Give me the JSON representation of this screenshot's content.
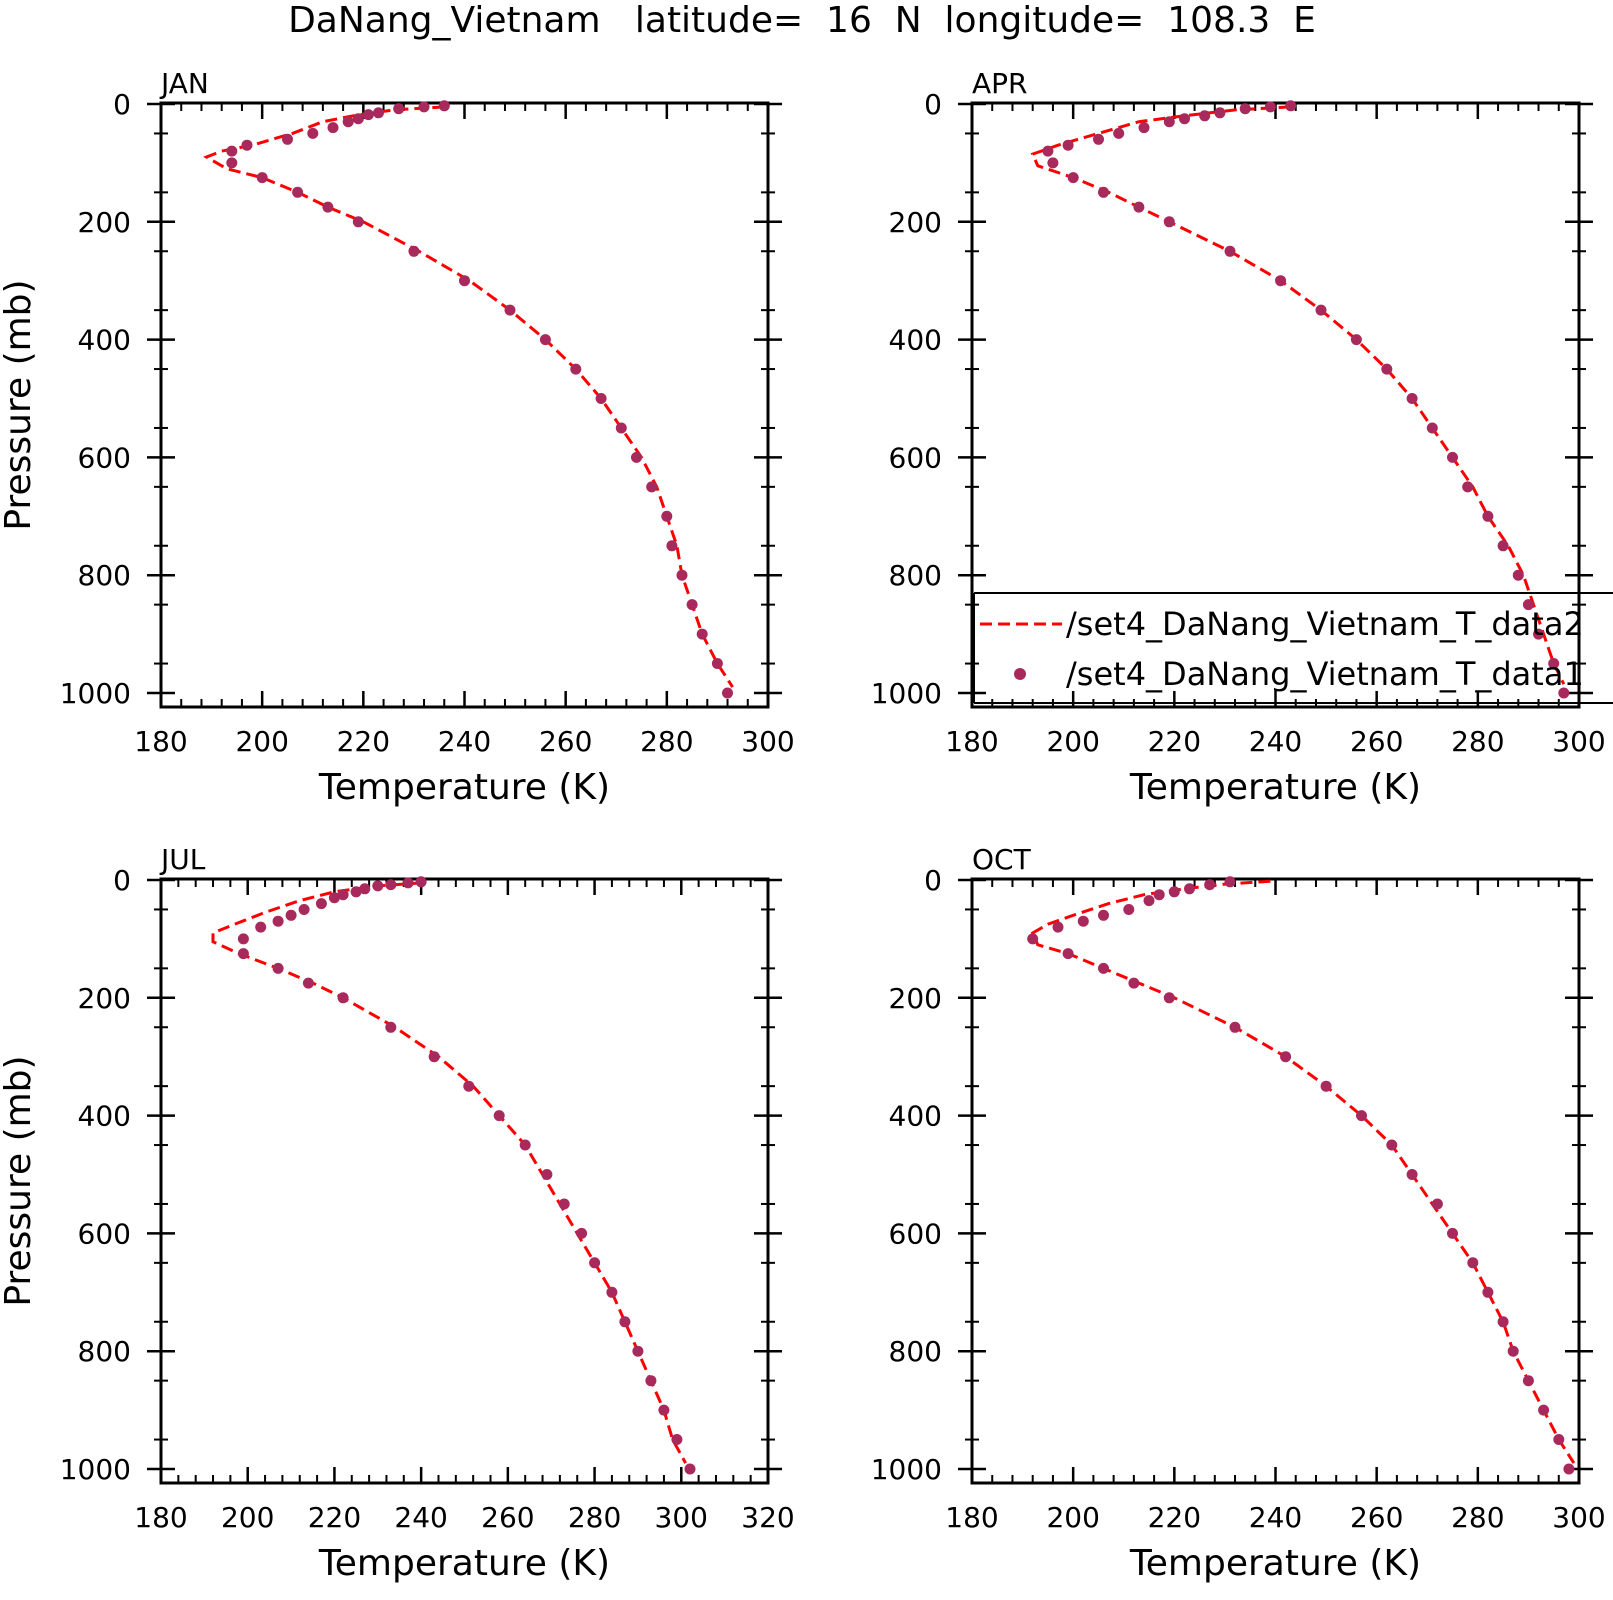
{
  "figure": {
    "title": "DaNang_Vietnam   latitude=  16  N  longitude=  108.3  E"
  },
  "colors": {
    "model_line": "#ff0000",
    "obs_marker": "#a8295c",
    "axes": "#000000"
  },
  "legend": {
    "panel": "APR",
    "placement": "lower-right, overflowing right edge",
    "items": [
      {
        "label": "/set4_DaNang_Vietnam_T_data2",
        "style": "dashed-line"
      },
      {
        "label": "/set4_DaNang_Vietnam_T_data1",
        "style": "dot"
      }
    ]
  },
  "chart_data": [
    {
      "type": "line",
      "panel_label": "JAN",
      "xlabel": "Temperature (K)",
      "ylabel": "Pressure (mb)",
      "xlim": [
        180,
        300
      ],
      "ylim": [
        1000,
        0
      ],
      "x_ticks": [
        "180",
        "200",
        "220",
        "240",
        "260",
        "280",
        "300"
      ],
      "y_ticks": [
        "0",
        "200",
        "400",
        "600",
        "800",
        "1000"
      ],
      "series": [
        {
          "style": "dashed-line",
          "points": [
            [
              236,
              5
            ],
            [
              226,
              10
            ],
            [
              218,
              20
            ],
            [
              212,
              30
            ],
            [
              206,
              50
            ],
            [
              198,
              70
            ],
            [
              192,
              80
            ],
            [
              189,
              90
            ],
            [
              193,
              110
            ],
            [
              200,
              125
            ],
            [
              207,
              150
            ],
            [
              213,
              175
            ],
            [
              220,
              200
            ],
            [
              231,
              250
            ],
            [
              241,
              300
            ],
            [
              249,
              350
            ],
            [
              256,
              400
            ],
            [
              262,
              450
            ],
            [
              267,
              500
            ],
            [
              271,
              550
            ],
            [
              275,
              600
            ],
            [
              278,
              650
            ],
            [
              280,
              700
            ],
            [
              282,
              750
            ],
            [
              283,
              800
            ],
            [
              285,
              850
            ],
            [
              287,
              900
            ],
            [
              290,
              950
            ],
            [
              293,
              990
            ]
          ]
        },
        {
          "style": "dot",
          "points": [
            [
              236,
              3
            ],
            [
              232,
              5
            ],
            [
              227,
              8
            ],
            [
              223,
              15
            ],
            [
              221,
              18
            ],
            [
              219,
              25
            ],
            [
              217,
              30
            ],
            [
              214,
              40
            ],
            [
              210,
              50
            ],
            [
              205,
              60
            ],
            [
              197,
              70
            ],
            [
              194,
              80
            ],
            [
              194,
              100
            ],
            [
              200,
              125
            ],
            [
              207,
              150
            ],
            [
              213,
              175
            ],
            [
              219,
              200
            ],
            [
              230,
              250
            ],
            [
              240,
              300
            ],
            [
              249,
              350
            ],
            [
              256,
              400
            ],
            [
              262,
              450
            ],
            [
              267,
              500
            ],
            [
              271,
              550
            ],
            [
              274,
              600
            ],
            [
              277,
              650
            ],
            [
              280,
              700
            ],
            [
              281,
              750
            ],
            [
              283,
              800
            ],
            [
              285,
              850
            ],
            [
              287,
              900
            ],
            [
              290,
              950
            ],
            [
              292,
              1000
            ]
          ]
        }
      ]
    },
    {
      "type": "line",
      "panel_label": "APR",
      "xlabel": "Temperature (K)",
      "ylabel": "",
      "xlim": [
        180,
        300
      ],
      "ylim": [
        1000,
        0
      ],
      "x_ticks": [
        "180",
        "200",
        "220",
        "240",
        "260",
        "280",
        "300"
      ],
      "y_ticks": [
        "0",
        "200",
        "400",
        "600",
        "800",
        "1000"
      ],
      "series": [
        {
          "style": "dashed-line",
          "points": [
            [
              243,
              5
            ],
            [
              232,
              10
            ],
            [
              222,
              20
            ],
            [
              213,
              30
            ],
            [
              205,
              50
            ],
            [
              197,
              70
            ],
            [
              192,
              85
            ],
            [
              193,
              105
            ],
            [
              200,
              125
            ],
            [
              207,
              150
            ],
            [
              213,
              175
            ],
            [
              219,
              200
            ],
            [
              231,
              250
            ],
            [
              241,
              300
            ],
            [
              249,
              350
            ],
            [
              256,
              400
            ],
            [
              262,
              450
            ],
            [
              267,
              500
            ],
            [
              271,
              550
            ],
            [
              275,
              600
            ],
            [
              279,
              650
            ],
            [
              282,
              700
            ],
            [
              286,
              750
            ],
            [
              289,
              800
            ],
            [
              291,
              850
            ],
            [
              293,
              900
            ],
            [
              295,
              950
            ],
            [
              297,
              985
            ]
          ]
        },
        {
          "style": "dot",
          "points": [
            [
              243,
              3
            ],
            [
              239,
              5
            ],
            [
              234,
              8
            ],
            [
              229,
              15
            ],
            [
              226,
              20
            ],
            [
              222,
              25
            ],
            [
              219,
              30
            ],
            [
              214,
              40
            ],
            [
              209,
              50
            ],
            [
              205,
              60
            ],
            [
              199,
              70
            ],
            [
              195,
              80
            ],
            [
              196,
              100
            ],
            [
              200,
              125
            ],
            [
              206,
              150
            ],
            [
              213,
              175
            ],
            [
              219,
              200
            ],
            [
              231,
              250
            ],
            [
              241,
              300
            ],
            [
              249,
              350
            ],
            [
              256,
              400
            ],
            [
              262,
              450
            ],
            [
              267,
              500
            ],
            [
              271,
              550
            ],
            [
              275,
              600
            ],
            [
              278,
              650
            ],
            [
              282,
              700
            ],
            [
              285,
              750
            ],
            [
              288,
              800
            ],
            [
              290,
              850
            ],
            [
              292,
              900
            ],
            [
              295,
              950
            ],
            [
              297,
              1000
            ]
          ]
        }
      ]
    },
    {
      "type": "line",
      "panel_label": "JUL",
      "xlabel": "Temperature (K)",
      "ylabel": "Pressure (mb)",
      "xlim": [
        180,
        320
      ],
      "ylim": [
        1000,
        0
      ],
      "x_ticks": [
        "180",
        "200",
        "220",
        "240",
        "260",
        "280",
        "300",
        "320"
      ],
      "y_ticks": [
        "0",
        "200",
        "400",
        "600",
        "800",
        "1000"
      ],
      "series": [
        {
          "style": "dashed-line",
          "points": [
            [
              240,
              5
            ],
            [
              230,
              10
            ],
            [
              220,
              20
            ],
            [
              212,
              35
            ],
            [
              204,
              55
            ],
            [
              197,
              75
            ],
            [
              192,
              90
            ],
            [
              192,
              105
            ],
            [
              198,
              125
            ],
            [
              207,
              150
            ],
            [
              215,
              175
            ],
            [
              222,
              200
            ],
            [
              234,
              250
            ],
            [
              244,
              300
            ],
            [
              252,
              350
            ],
            [
              258,
              400
            ],
            [
              264,
              450
            ],
            [
              268,
              500
            ],
            [
              272,
              550
            ],
            [
              276,
              600
            ],
            [
              280,
              650
            ],
            [
              284,
              700
            ],
            [
              287,
              750
            ],
            [
              290,
              800
            ],
            [
              293,
              850
            ],
            [
              296,
              900
            ],
            [
              298,
              950
            ],
            [
              301,
              990
            ]
          ]
        },
        {
          "style": "dot",
          "points": [
            [
              240,
              3
            ],
            [
              237,
              5
            ],
            [
              233,
              8
            ],
            [
              230,
              10
            ],
            [
              227,
              15
            ],
            [
              225,
              20
            ],
            [
              222,
              25
            ],
            [
              220,
              30
            ],
            [
              217,
              40
            ],
            [
              213,
              50
            ],
            [
              210,
              60
            ],
            [
              207,
              70
            ],
            [
              203,
              80
            ],
            [
              199,
              100
            ],
            [
              199,
              125
            ],
            [
              207,
              150
            ],
            [
              214,
              175
            ],
            [
              222,
              200
            ],
            [
              233,
              250
            ],
            [
              243,
              300
            ],
            [
              251,
              350
            ],
            [
              258,
              400
            ],
            [
              264,
              450
            ],
            [
              269,
              500
            ],
            [
              273,
              550
            ],
            [
              277,
              600
            ],
            [
              280,
              650
            ],
            [
              284,
              700
            ],
            [
              287,
              750
            ],
            [
              290,
              800
            ],
            [
              293,
              850
            ],
            [
              296,
              900
            ],
            [
              299,
              950
            ],
            [
              302,
              1000
            ]
          ]
        }
      ]
    },
    {
      "type": "line",
      "panel_label": "OCT",
      "xlabel": "Temperature (K)",
      "ylabel": "",
      "xlim": [
        180,
        300
      ],
      "ylim": [
        1000,
        0
      ],
      "x_ticks": [
        "180",
        "200",
        "220",
        "240",
        "260",
        "280",
        "300"
      ],
      "y_ticks": [
        "0",
        "200",
        "400",
        "600",
        "800",
        "1000"
      ],
      "series": [
        {
          "style": "dashed-line",
          "points": [
            [
              239,
              2
            ],
            [
              230,
              7
            ],
            [
              222,
              15
            ],
            [
              214,
              25
            ],
            [
              207,
              40
            ],
            [
              200,
              60
            ],
            [
              195,
              75
            ],
            [
              192,
              90
            ],
            [
              193,
              110
            ],
            [
              199,
              125
            ],
            [
              206,
              150
            ],
            [
              213,
              175
            ],
            [
              220,
              200
            ],
            [
              232,
              250
            ],
            [
              242,
              300
            ],
            [
              250,
              350
            ],
            [
              257,
              400
            ],
            [
              263,
              450
            ],
            [
              267,
              500
            ],
            [
              271,
              550
            ],
            [
              275,
              600
            ],
            [
              279,
              650
            ],
            [
              282,
              700
            ],
            [
              285,
              750
            ],
            [
              287,
              800
            ],
            [
              290,
              850
            ],
            [
              293,
              900
            ],
            [
              296,
              950
            ],
            [
              299,
              990
            ]
          ]
        },
        {
          "style": "dot",
          "points": [
            [
              231,
              3
            ],
            [
              227,
              8
            ],
            [
              223,
              15
            ],
            [
              220,
              20
            ],
            [
              217,
              25
            ],
            [
              215,
              35
            ],
            [
              211,
              50
            ],
            [
              206,
              60
            ],
            [
              202,
              70
            ],
            [
              197,
              80
            ],
            [
              192,
              100
            ],
            [
              199,
              125
            ],
            [
              206,
              150
            ],
            [
              212,
              175
            ],
            [
              219,
              200
            ],
            [
              232,
              250
            ],
            [
              242,
              300
            ],
            [
              250,
              350
            ],
            [
              257,
              400
            ],
            [
              263,
              450
            ],
            [
              267,
              500
            ],
            [
              272,
              550
            ],
            [
              275,
              600
            ],
            [
              279,
              650
            ],
            [
              282,
              700
            ],
            [
              285,
              750
            ],
            [
              287,
              800
            ],
            [
              290,
              850
            ],
            [
              293,
              900
            ],
            [
              296,
              950
            ],
            [
              298,
              1000
            ]
          ]
        }
      ]
    }
  ]
}
